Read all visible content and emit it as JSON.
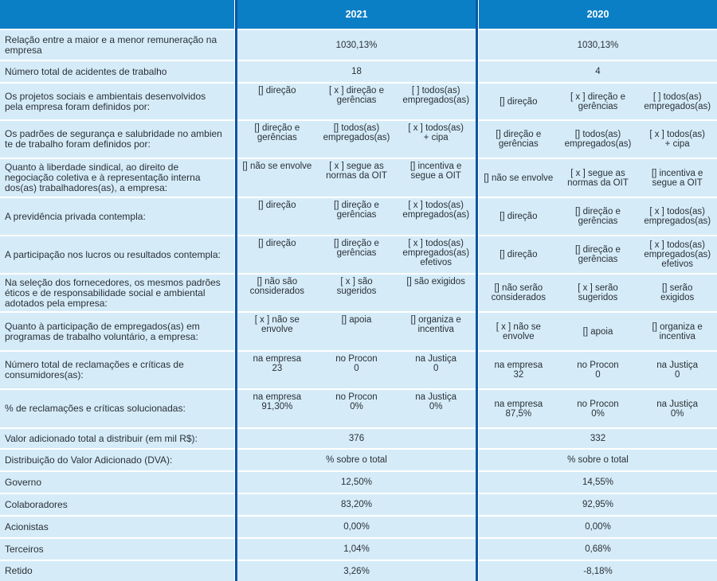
{
  "header": {
    "label": "",
    "year_a": "2021",
    "year_b": "2020"
  },
  "rows": [
    {
      "label": "Relação entre a maior e a menor remuneração na\nempresa",
      "y2021": "1030,13%",
      "y2020": "1030,13%"
    },
    {
      "label": "Número total de acidentes de trabalho",
      "y2021": "18",
      "y2020": "4"
    },
    {
      "label": "Os projetos sociais e ambientais desenvolvidos\npela empresa foram definidos por:",
      "y2021": [
        "[] direção",
        "[ x ] direção e\ngerências",
        "[ ] todos(as)\nempregados(as)"
      ],
      "y2020": [
        "[] direção",
        "[ x ] direção e\ngerências",
        "[ ] todos(as)\nempregados(as)"
      ]
    },
    {
      "label": "Os padrões de segurança e salubridade no ambien\nte de trabalho foram definidos por:",
      "y2021": [
        "[] direção e\ngerências",
        "[] todos(as)\nempregados(as)",
        "[ x ] todos(as)\n+ cipa"
      ],
      "y2020": [
        "[] direção e\ngerências",
        "[] todos(as)\nempregados(as)",
        "[ x ] todos(as)\n+ cipa"
      ]
    },
    {
      "label": "Quanto à liberdade sindical, ao direito de\nnegociação coletiva e à representação interna\ndos(as) trabalhadores(as), a empresa:",
      "y2021": [
        "[] não se envolve",
        "[ x ] segue as\nnormas da OIT",
        "[] incentiva e\nsegue a OIT"
      ],
      "y2020": [
        "[] não se envolve",
        "[ x ] segue as\nnormas da OIT",
        "[] incentiva e\nsegue a OIT"
      ]
    },
    {
      "label": "A previdência privada contempla:",
      "y2021": [
        "[] direção",
        "[] direção e\ngerências",
        "[ x ] todos(as)\nempregados(as)"
      ],
      "y2020": [
        "[] direção",
        "[] direção e\ngerências",
        "[ x ] todos(as)\nempregados(as)"
      ]
    },
    {
      "label": "A participação nos lucros ou resultados contempla:",
      "y2021": [
        "[] direção",
        "[] direção e\ngerências",
        "[ x ] todos(as)\nempregados(as)\nefetivos"
      ],
      "y2020": [
        "[] direção",
        "[] direção e\ngerências",
        "[ x ] todos(as)\nempregados(as)\nefetivos"
      ]
    },
    {
      "label": "Na seleção dos fornecedores, os mesmos padrões\néticos e de responsabilidade social e ambiental\nadotados pela empresa:",
      "y2021": [
        "[] não são\nconsiderados",
        "[ x ] são\nsugeridos",
        "[] são exigidos"
      ],
      "y2020": [
        "[] não serão\nconsiderados",
        "[ x ] serão\nsugeridos",
        "[] serão\nexigidos"
      ]
    },
    {
      "label": "Quanto à participação de empregados(as) em\nprogramas de trabalho voluntário, a empresa:",
      "y2021": [
        "[ x ] não se\nenvolve",
        "[] apoia",
        "[] organiza e\nincentiva"
      ],
      "y2020": [
        "[ x ] não se\nenvolve",
        "[] apoia",
        "[] organiza e\nincentiva"
      ]
    },
    {
      "label": "Número total de reclamações e críticas de\nconsumidores(as):",
      "y2021": [
        "na empresa\n23",
        "no Procon\n0",
        "na Justiça\n0"
      ],
      "y2020": [
        "na empresa\n32",
        "no Procon\n0",
        "na Justiça\n0"
      ]
    },
    {
      "label": "% de reclamações e críticas solucionadas:",
      "y2021": [
        "na empresa\n91,30%",
        "no Procon\n0%",
        "na Justiça\n0%"
      ],
      "y2020": [
        "na empresa\n87,5%",
        "no Procon\n0%",
        "na Justiça\n0%"
      ]
    },
    {
      "label": "Valor adicionado total a distribuir (em mil R$):",
      "y2021": "376",
      "y2020": "332"
    },
    {
      "label": "Distribuição do Valor Adicionado (DVA):",
      "y2021": "% sobre o total",
      "y2020": "% sobre o total"
    },
    {
      "label": "Governo",
      "y2021": "12,50%",
      "y2020": "14,55%"
    },
    {
      "label": "Colaboradores",
      "y2021": "83,20%",
      "y2020": "92,95%"
    },
    {
      "label": "Acionistas",
      "y2021": "0,00%",
      "y2020": "0,00%"
    },
    {
      "label": "Terceiros",
      "y2021": "1,04%",
      "y2020": "0,68%"
    },
    {
      "label": "Retido",
      "y2021": "3,26%",
      "y2020": "-8,18%"
    }
  ],
  "colors": {
    "header": "#0b7fc6",
    "row": "#d5ecf8",
    "divider": "#0d55a5"
  }
}
